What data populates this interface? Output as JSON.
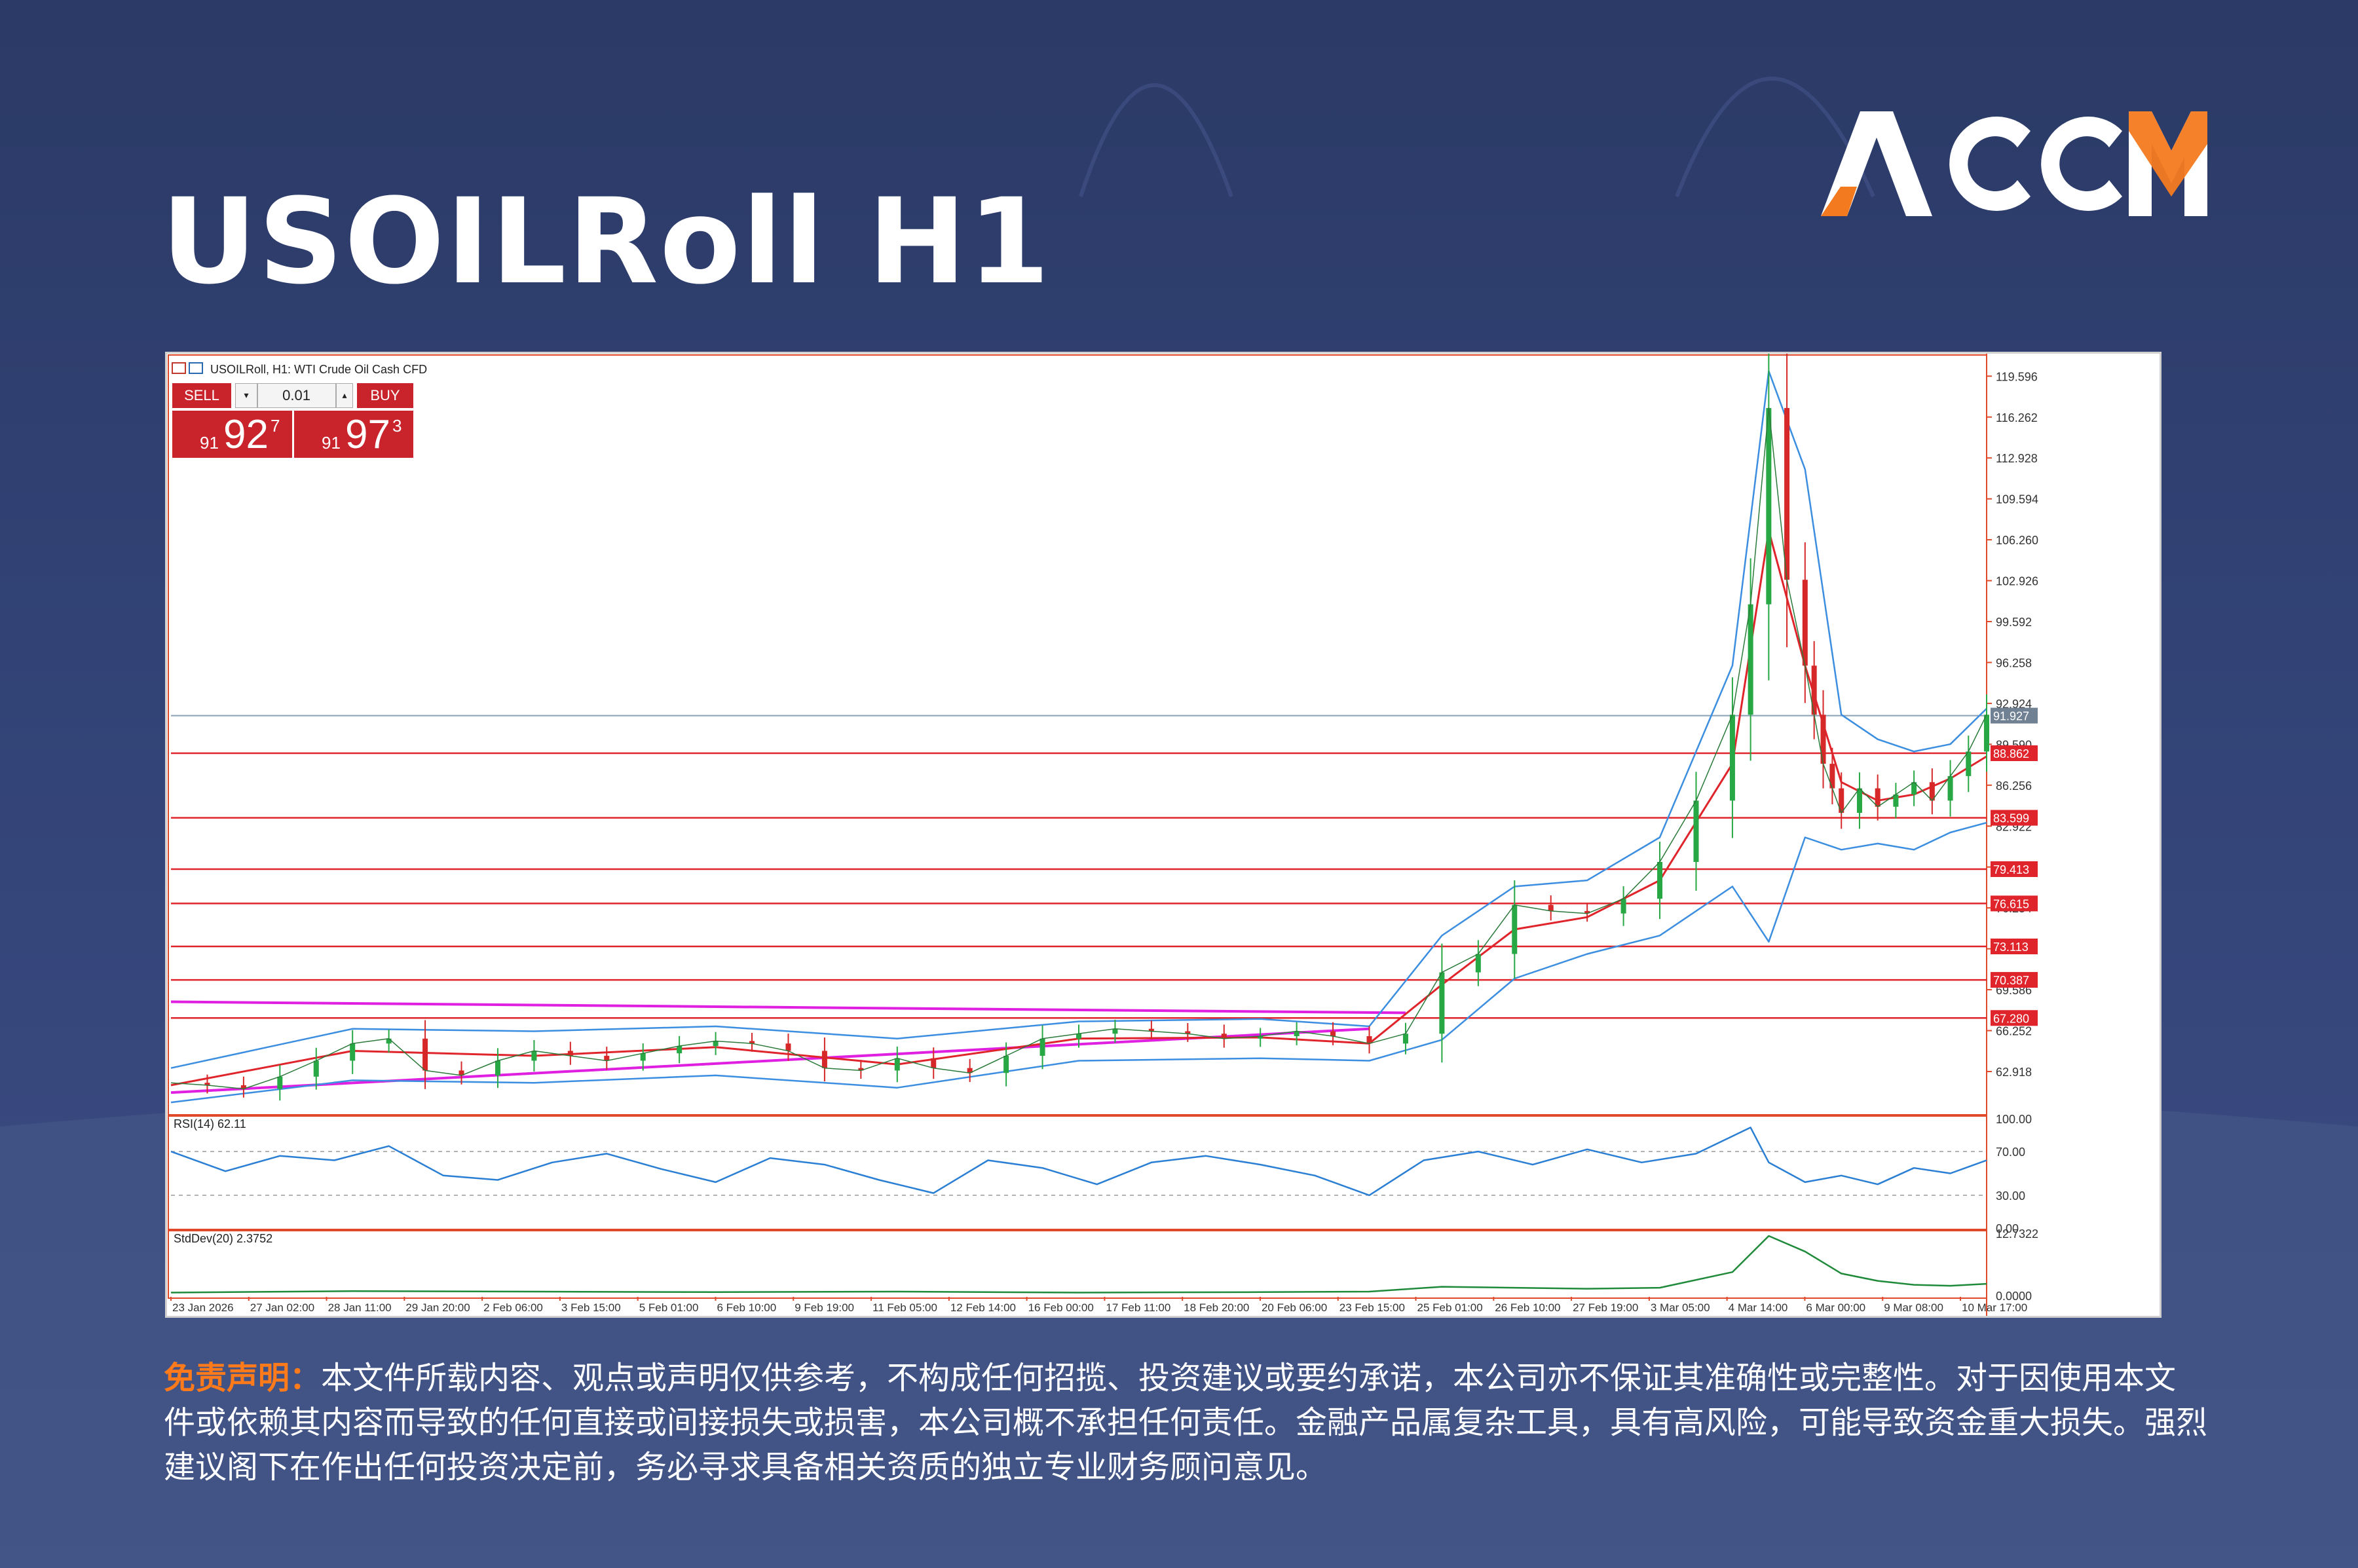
{
  "page": {
    "title": "USOILRoll H1",
    "logo_text": "ACCM",
    "brand_orange": "#f47a20",
    "disclaimer_label": "免责声明：",
    "disclaimer_text": "本文件所载内容、观点或声明仅供参考，不构成任何招揽、投资建议或要约承诺，本公司亦不保证其准确性或完整性。对于因使用本文件或依赖其内容而导致的任何直接或间接损失或损害，本公司概不承担任何责任。金融产品属复杂工具，具有高风险，可能导致资金重大损失。强烈建议阁下在作出任何投资决定前，务必寻求具备相关资质的独立专业财务顾问意见。"
  },
  "terminal": {
    "header": "USOILRoll, H1:  WTI Crude Oil Cash CFD",
    "sell_label": "SELL",
    "buy_label": "BUY",
    "lot": "0.01",
    "sell_small": "91",
    "sell_big": "92",
    "sell_sup": "7",
    "buy_small": "91",
    "buy_big": "97",
    "buy_sup": "3"
  },
  "chart_data": [
    {
      "type": "line",
      "subtype": "candlestick-ohlc-approx",
      "ylim": [
        59.5,
        121.0
      ],
      "x_ticks": [
        "23 Jan 2026",
        "27 Jan 02:00",
        "28 Jan 11:00",
        "29 Jan 20:00",
        "2 Feb 06:00",
        "3 Feb 15:00",
        "5 Feb 01:00",
        "6 Feb 10:00",
        "9 Feb 19:00",
        "11 Feb 05:00",
        "12 Feb 14:00",
        "16 Feb 00:00",
        "17 Feb 11:00",
        "18 Feb 20:00",
        "20 Feb 06:00",
        "23 Feb 15:00",
        "25 Feb 01:00",
        "26 Feb 10:00",
        "27 Feb 19:00",
        "3 Mar 05:00",
        "4 Mar 14:00",
        "6 Mar 00:00",
        "9 Mar 08:00",
        "10 Mar 17:00"
      ],
      "y_ticks": [
        "119.596",
        "116.262",
        "112.928",
        "109.594",
        "106.260",
        "102.926",
        "99.592",
        "96.258",
        "92.924",
        "89.590",
        "86.256",
        "82.922",
        "79.588",
        "76.254",
        "72.920",
        "69.586",
        "66.252",
        "62.918"
      ],
      "current_price": {
        "value": 91.927,
        "label": "91.927"
      },
      "horizontal_levels": [
        {
          "value": 88.862,
          "label": "88.862"
        },
        {
          "value": 83.599,
          "label": "83.599"
        },
        {
          "value": 79.413,
          "label": "79.413"
        },
        {
          "value": 76.615,
          "label": "76.615"
        },
        {
          "value": 73.113,
          "label": "73.113"
        },
        {
          "value": 70.387,
          "label": "70.387"
        },
        {
          "value": 67.28,
          "label": "67.280"
        }
      ],
      "trendlines": [
        {
          "from": [
            0,
            68.6
          ],
          "to": [
            0.68,
            67.7
          ]
        },
        {
          "from": [
            0,
            61.2
          ],
          "to": [
            0.66,
            66.4
          ]
        }
      ],
      "price_series": {
        "name": "",
        "x": [
          0,
          0.02,
          0.04,
          0.06,
          0.08,
          0.1,
          0.12,
          0.14,
          0.16,
          0.18,
          0.2,
          0.22,
          0.24,
          0.26,
          0.28,
          0.3,
          0.32,
          0.34,
          0.36,
          0.38,
          0.4,
          0.42,
          0.44,
          0.46,
          0.48,
          0.5,
          0.52,
          0.54,
          0.56,
          0.58,
          0.6,
          0.62,
          0.64,
          0.66,
          0.68,
          0.7,
          0.72,
          0.74,
          0.76,
          0.78,
          0.8,
          0.82,
          0.84,
          0.86,
          0.87,
          0.88,
          0.89,
          0.9,
          0.905,
          0.91,
          0.915,
          0.92,
          0.93,
          0.94,
          0.95,
          0.96,
          0.97,
          0.98,
          0.99,
          1.0
        ],
        "y": [
          62.0,
          61.8,
          61.5,
          62.5,
          63.8,
          65.2,
          65.6,
          63.0,
          62.6,
          63.8,
          64.6,
          64.2,
          63.8,
          64.4,
          65.0,
          65.4,
          65.2,
          64.6,
          63.2,
          63.0,
          64.0,
          63.2,
          62.8,
          64.2,
          65.6,
          66.0,
          66.4,
          66.2,
          66.0,
          65.6,
          65.8,
          66.2,
          65.8,
          65.2,
          66.0,
          71.0,
          72.5,
          76.5,
          76.0,
          75.8,
          77.0,
          80.0,
          85.0,
          92.0,
          101.0,
          117.0,
          103.0,
          96.0,
          92.0,
          88.0,
          86.0,
          84.0,
          86.0,
          84.5,
          85.5,
          86.5,
          85.0,
          87.0,
          89.0,
          92.0
        ]
      },
      "ma_fast": {
        "name": "",
        "x": [
          0,
          0.1,
          0.2,
          0.3,
          0.4,
          0.5,
          0.6,
          0.66,
          0.7,
          0.74,
          0.78,
          0.82,
          0.86,
          0.88,
          0.9,
          0.92,
          0.94,
          0.96,
          0.98,
          1.0
        ],
        "y": [
          61.8,
          64.6,
          64.2,
          64.9,
          63.5,
          65.6,
          65.7,
          65.2,
          70.0,
          74.5,
          75.5,
          78.5,
          88.0,
          107.0,
          96.0,
          86.5,
          85.0,
          85.5,
          86.8,
          88.6
        ]
      },
      "bollinger_upper": {
        "name": "",
        "x": [
          0,
          0.1,
          0.2,
          0.3,
          0.4,
          0.5,
          0.6,
          0.66,
          0.7,
          0.74,
          0.78,
          0.82,
          0.86,
          0.88,
          0.9,
          0.92,
          0.94,
          0.96,
          0.98,
          1.0
        ],
        "y": [
          63.2,
          66.4,
          66.2,
          66.6,
          65.6,
          67.0,
          67.2,
          66.6,
          74.0,
          78.0,
          78.5,
          82.0,
          96.0,
          120.0,
          112.0,
          92.0,
          90.0,
          89.0,
          89.6,
          92.5
        ]
      },
      "bollinger_lower": {
        "name": "",
        "x": [
          0,
          0.1,
          0.2,
          0.3,
          0.4,
          0.5,
          0.6,
          0.66,
          0.7,
          0.74,
          0.78,
          0.82,
          0.86,
          0.88,
          0.9,
          0.92,
          0.94,
          0.96,
          0.98,
          1.0
        ],
        "y": [
          60.4,
          62.2,
          62.0,
          62.6,
          61.6,
          63.8,
          64.0,
          63.8,
          65.5,
          70.5,
          72.5,
          74.0,
          78.0,
          73.5,
          82.0,
          81.0,
          81.5,
          81.0,
          82.4,
          83.2
        ]
      }
    },
    {
      "type": "line",
      "label": "RSI(14) 62.11",
      "ylim": [
        0,
        100
      ],
      "y_ticks": [
        "100.00",
        "70.00",
        "30.00",
        "0.00"
      ],
      "series": [
        {
          "name": "",
          "x": [
            0,
            0.03,
            0.06,
            0.09,
            0.12,
            0.15,
            0.18,
            0.21,
            0.24,
            0.27,
            0.3,
            0.33,
            0.36,
            0.39,
            0.42,
            0.45,
            0.48,
            0.51,
            0.54,
            0.57,
            0.6,
            0.63,
            0.66,
            0.69,
            0.72,
            0.75,
            0.78,
            0.81,
            0.84,
            0.87,
            0.88,
            0.9,
            0.92,
            0.94,
            0.96,
            0.98,
            1.0
          ],
          "y": [
            70,
            52,
            66,
            62,
            75,
            48,
            44,
            60,
            68,
            54,
            42,
            64,
            58,
            44,
            32,
            62,
            55,
            40,
            60,
            66,
            58,
            48,
            30,
            62,
            70,
            58,
            72,
            60,
            68,
            92,
            60,
            42,
            48,
            40,
            55,
            50,
            62
          ]
        }
      ]
    },
    {
      "type": "area",
      "label": "StdDev(20) 2.3752",
      "ylim": [
        0,
        12.7322
      ],
      "y_ticks": [
        "12.7322",
        "0.0000"
      ],
      "series": [
        {
          "name": "",
          "x": [
            0,
            0.1,
            0.2,
            0.3,
            0.4,
            0.5,
            0.6,
            0.66,
            0.7,
            0.74,
            0.78,
            0.82,
            0.86,
            0.88,
            0.9,
            0.92,
            0.94,
            0.96,
            0.98,
            1.0
          ],
          "y": [
            0.6,
            0.9,
            0.8,
            0.7,
            0.8,
            0.6,
            0.7,
            0.8,
            1.8,
            1.6,
            1.4,
            1.6,
            4.8,
            12.2,
            9.0,
            4.5,
            3.0,
            2.2,
            2.0,
            2.4
          ]
        }
      ]
    }
  ]
}
